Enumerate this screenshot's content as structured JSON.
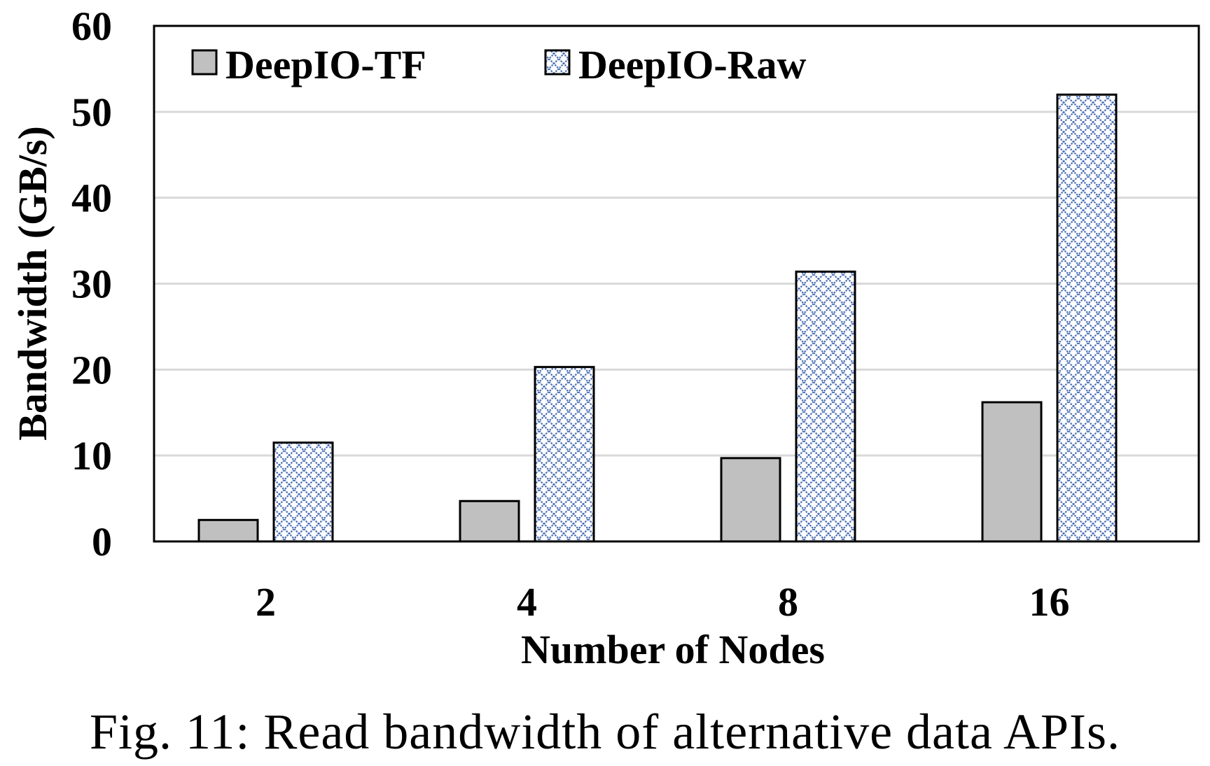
{
  "caption": "Fig. 11: Read bandwidth of alternative data APIs.",
  "chart_data": {
    "type": "bar",
    "title": "",
    "xlabel": "Number of Nodes",
    "ylabel": "Bandwidth (GB/s)",
    "categories": [
      "2",
      "4",
      "8",
      "16"
    ],
    "ylim": [
      0,
      60
    ],
    "yticks": [
      0,
      10,
      20,
      30,
      40,
      50,
      60
    ],
    "grid": "horizontal",
    "legend_position": "top-left, inside, horizontal",
    "series": [
      {
        "name": "DeepIO-TF",
        "values": [
          2.5,
          4.7,
          9.7,
          16.2
        ],
        "color": "#c0c0c0",
        "pattern": "solid"
      },
      {
        "name": "DeepIO-Raw",
        "values": [
          11.5,
          20.3,
          31.4,
          52.0
        ],
        "color": "#4a6fb5",
        "pattern": "crosshatch"
      }
    ]
  }
}
